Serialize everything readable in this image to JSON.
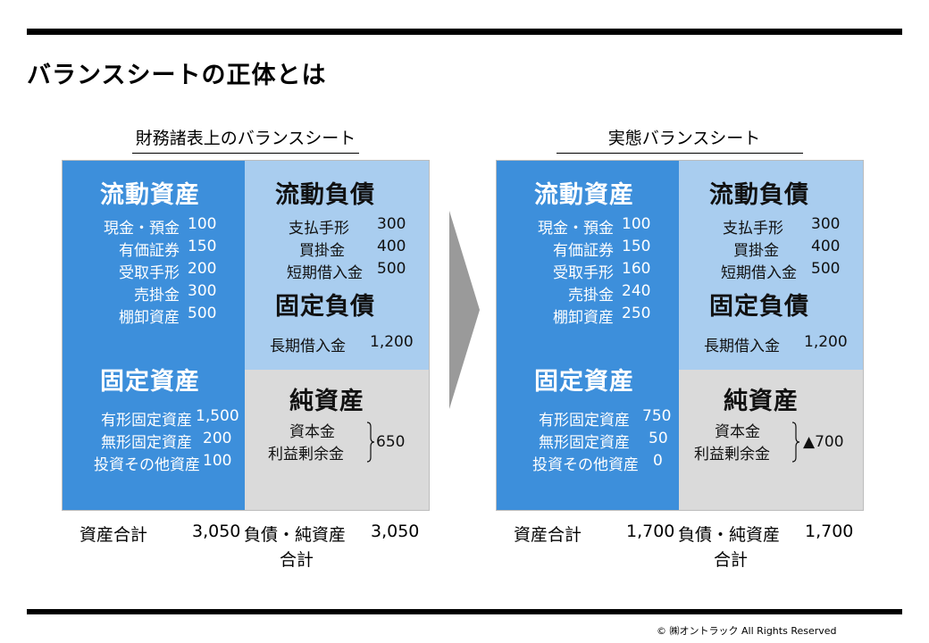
{
  "page_title": "バランスシートの正体とは",
  "copyright": "© ㈱オントラック All Rights Reserved",
  "colors": {
    "current_assets_fixed_assets": "#3d8fdb",
    "liabilities": "#a9cdef",
    "net_assets": "#dadada",
    "arrow": "#9a9a9a"
  },
  "left": {
    "title": "財務諸表上のバランスシート",
    "current_assets": {
      "heading": "流動資産",
      "items": [
        {
          "label": "現金・預金",
          "value": "100"
        },
        {
          "label": "有価証券",
          "value": "150"
        },
        {
          "label": "受取手形",
          "value": "200"
        },
        {
          "label": "売掛金",
          "value": "300"
        },
        {
          "label": "棚卸資産",
          "value": "500"
        }
      ]
    },
    "fixed_assets": {
      "heading": "固定資産",
      "items": [
        {
          "label": "有形固定資産",
          "value": "1,500"
        },
        {
          "label": "無形固定資産",
          "value": "200"
        },
        {
          "label": "投資その他資産",
          "value": "100"
        }
      ]
    },
    "current_liabilities": {
      "heading": "流動負債",
      "items": [
        {
          "label": "支払手形",
          "value": "300"
        },
        {
          "label": "買掛金",
          "value": "400"
        },
        {
          "label": "短期借入金",
          "value": "500"
        }
      ]
    },
    "fixed_liabilities": {
      "heading": "固定負債",
      "items": [
        {
          "label": "長期借入金",
          "value": "1,200"
        }
      ]
    },
    "net_assets": {
      "heading": "純資産",
      "items": [
        {
          "label": "資本金"
        },
        {
          "label": "利益剰余金"
        }
      ],
      "value": "650"
    },
    "totals": {
      "assets_label": "資産合計",
      "assets_value": "3,050",
      "liab_label_1": "負債・純資産",
      "liab_label_2": "合計",
      "liab_value": "3,050"
    }
  },
  "right": {
    "title": "実態バランスシート",
    "current_assets": {
      "heading": "流動資産",
      "items": [
        {
          "label": "現金・預金",
          "value": "100"
        },
        {
          "label": "有価証券",
          "value": "150"
        },
        {
          "label": "受取手形",
          "value": "160"
        },
        {
          "label": "売掛金",
          "value": "240"
        },
        {
          "label": "棚卸資産",
          "value": "250"
        }
      ]
    },
    "fixed_assets": {
      "heading": "固定資産",
      "items": [
        {
          "label": "有形固定資産",
          "value": "750"
        },
        {
          "label": "無形固定資産",
          "value": "50"
        },
        {
          "label": "投資その他資産",
          "value": "0"
        }
      ]
    },
    "current_liabilities": {
      "heading": "流動負債",
      "items": [
        {
          "label": "支払手形",
          "value": "300"
        },
        {
          "label": "買掛金",
          "value": "400"
        },
        {
          "label": "短期借入金",
          "value": "500"
        }
      ]
    },
    "fixed_liabilities": {
      "heading": "固定負債",
      "items": [
        {
          "label": "長期借入金",
          "value": "1,200"
        }
      ]
    },
    "net_assets": {
      "heading": "純資産",
      "items": [
        {
          "label": "資本金"
        },
        {
          "label": "利益剰余金"
        }
      ],
      "value": "▲700"
    },
    "totals": {
      "assets_label": "資産合計",
      "assets_value": "1,700",
      "liab_label_1": "負債・純資産",
      "liab_label_2": "合計",
      "liab_value": "1,700"
    }
  }
}
